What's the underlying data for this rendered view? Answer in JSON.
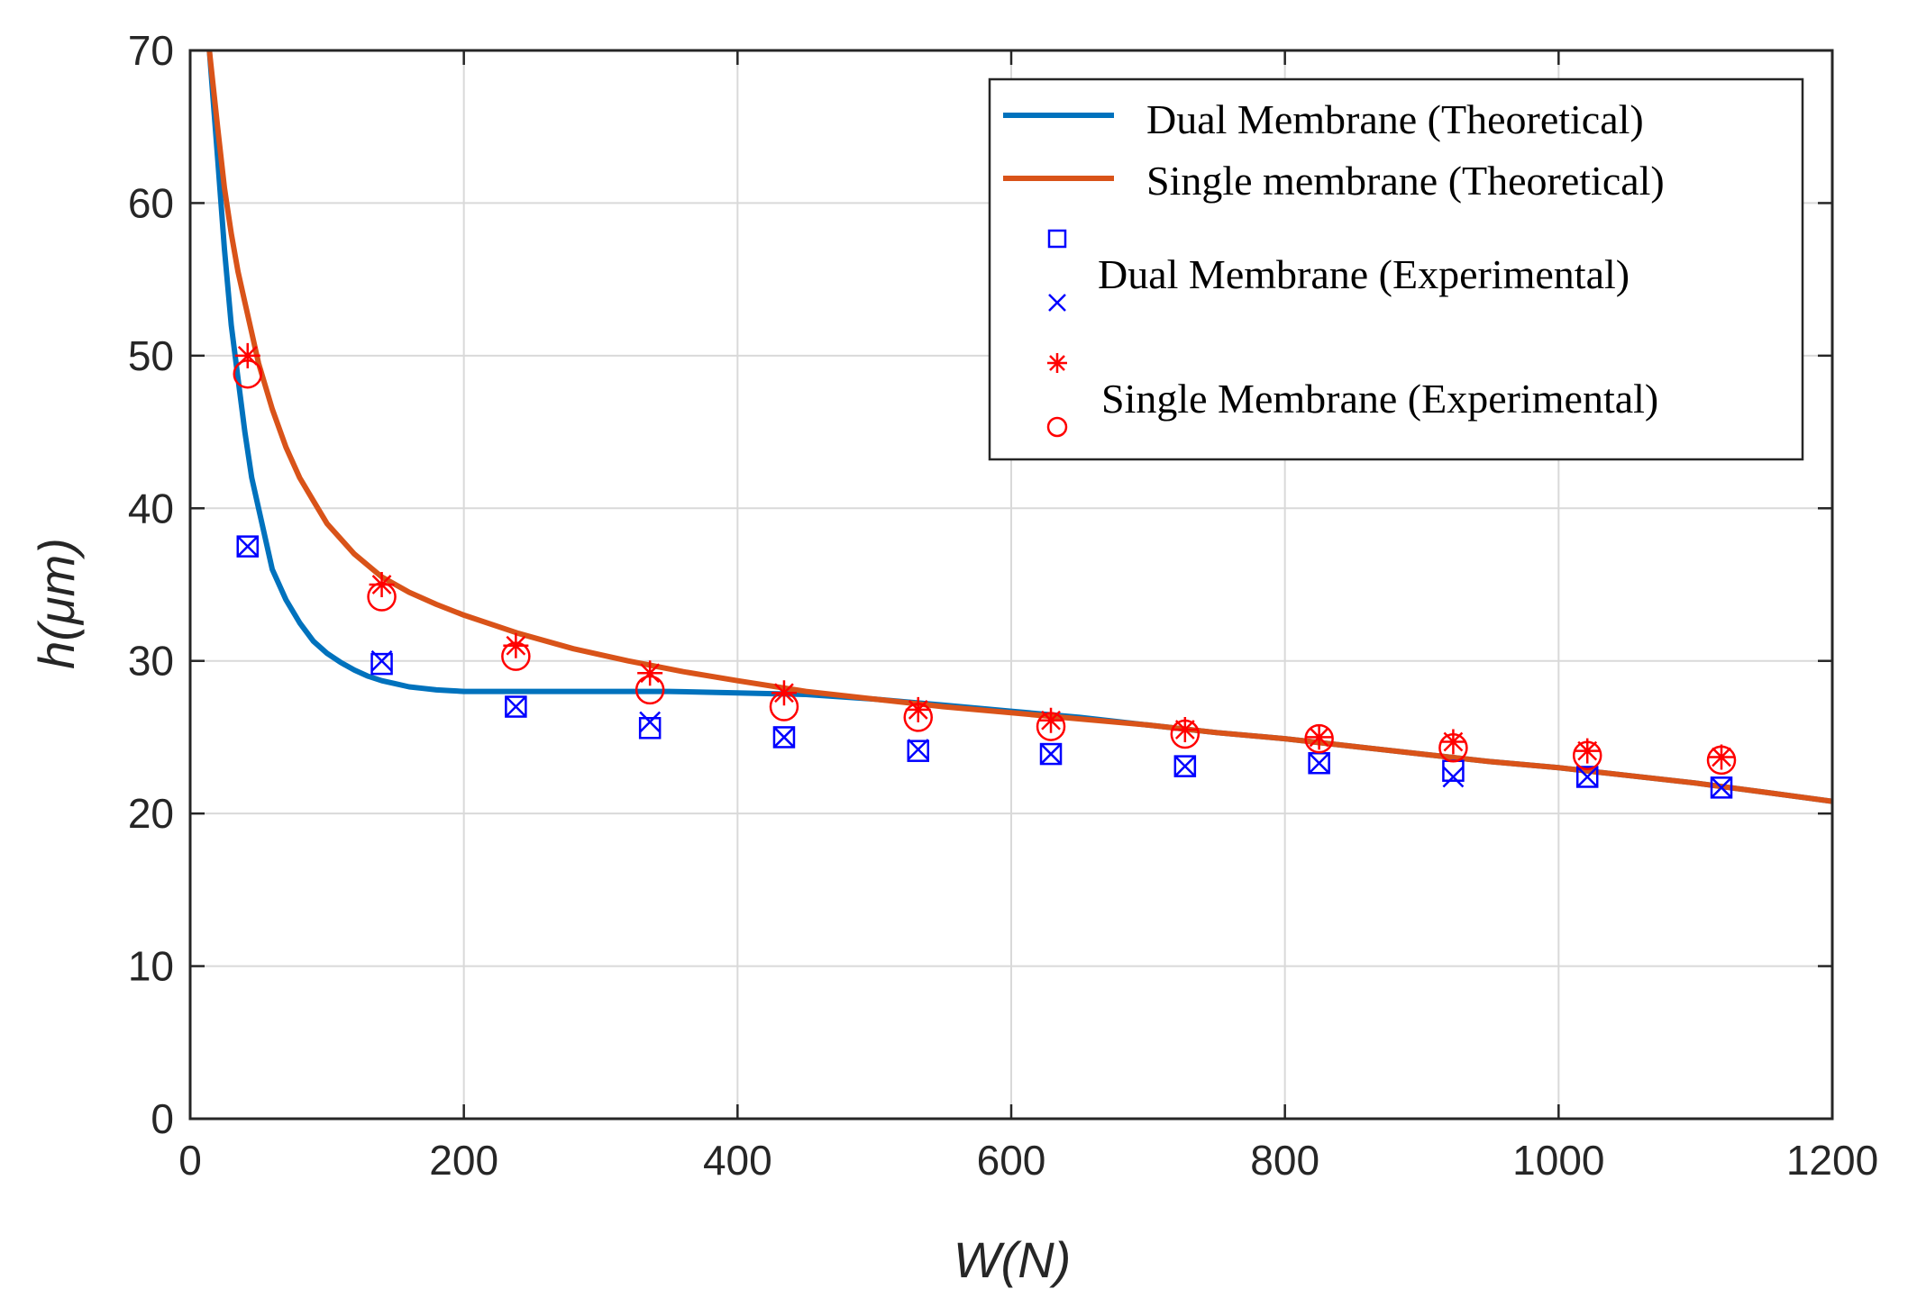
{
  "chart_data": {
    "type": "line",
    "title": "",
    "xlabel": "W(N)",
    "ylabel": "h(μm)",
    "xlim": [
      0,
      1200
    ],
    "ylim": [
      0,
      70
    ],
    "x_ticks": [
      0,
      200,
      400,
      600,
      800,
      1000,
      1200
    ],
    "y_ticks": [
      0,
      10,
      20,
      30,
      40,
      50,
      60,
      70
    ],
    "x_tick_labels": [
      "0",
      "200",
      "400",
      "600",
      "800",
      "1000",
      "1200"
    ],
    "y_tick_labels": [
      "0",
      "10",
      "20",
      "30",
      "40",
      "50",
      "60",
      "70"
    ],
    "grid": true,
    "legend_position": "top-right",
    "series": [
      {
        "name": "Dual Membrane (Theoretical)",
        "kind": "line",
        "color": "#0072bd",
        "x": [
          14,
          20,
          25,
          30,
          35,
          40,
          45,
          50,
          60,
          70,
          80,
          90,
          100,
          110,
          120,
          130,
          140,
          150,
          160,
          170,
          180,
          190,
          200,
          220,
          240,
          260,
          280,
          300,
          350,
          400,
          450,
          500,
          550,
          600,
          650,
          700,
          750,
          800,
          850,
          900,
          950,
          1000,
          1050,
          1100,
          1150,
          1200
        ],
        "y": [
          70,
          63,
          57,
          52,
          48.5,
          45,
          42,
          40,
          36,
          34,
          32.5,
          31.3,
          30.5,
          29.9,
          29.4,
          29.0,
          28.7,
          28.5,
          28.3,
          28.2,
          28.1,
          28.05,
          28.0,
          28.0,
          28.0,
          28.0,
          28.0,
          28.0,
          28.0,
          27.9,
          27.8,
          27.5,
          27.1,
          26.7,
          26.3,
          25.8,
          25.3,
          24.9,
          24.4,
          23.9,
          23.4,
          23.0,
          22.5,
          22.0,
          21.4,
          20.8
        ]
      },
      {
        "name": "Single membrane (Theoretical)",
        "kind": "line",
        "color": "#d95319",
        "x": [
          14,
          20,
          25,
          30,
          35,
          40,
          45,
          50,
          60,
          70,
          80,
          90,
          100,
          120,
          140,
          160,
          180,
          200,
          240,
          280,
          320,
          360,
          400,
          450,
          500,
          550,
          600,
          650,
          700,
          750,
          800,
          850,
          900,
          950,
          1000,
          1050,
          1100,
          1150,
          1200
        ],
        "y": [
          70,
          65,
          61,
          58,
          55.5,
          53.5,
          51.5,
          49.5,
          46.5,
          44,
          42,
          40.5,
          39,
          37,
          35.5,
          34.5,
          33.7,
          33.0,
          31.8,
          30.8,
          30.0,
          29.3,
          28.7,
          28.0,
          27.5,
          27.0,
          26.6,
          26.2,
          25.8,
          25.3,
          24.9,
          24.4,
          23.9,
          23.4,
          23.0,
          22.5,
          22.0,
          21.4,
          20.8
        ]
      },
      {
        "name": "Dual Membrane (Experimental)",
        "kind": "markers",
        "markers": [
          "square",
          "x"
        ],
        "marker_names": [
          "dual-square",
          "dual-x"
        ],
        "color": "#0000ff",
        "x": [
          42,
          140,
          238,
          336,
          434,
          532,
          629,
          727,
          825,
          923,
          1021,
          1119
        ],
        "y": [
          37.5,
          29.8,
          27.0,
          25.6,
          25.0,
          24.1,
          23.9,
          23.1,
          23.3,
          22.8,
          22.4,
          21.7
        ],
        "y_x": [
          37.5,
          30.0,
          27.0,
          26.0,
          25.0,
          24.2,
          23.9,
          23.1,
          23.3,
          22.4,
          22.4,
          21.7
        ]
      },
      {
        "name": "Single Membrane (Experimental)",
        "kind": "markers",
        "markers": [
          "asterisk",
          "circle"
        ],
        "marker_names": [
          "single-asterisk",
          "single-circle"
        ],
        "color": "#ff0000",
        "x": [
          42,
          140,
          238,
          336,
          434,
          532,
          629,
          727,
          825,
          923,
          1021,
          1119
        ],
        "y": [
          50.0,
          35.0,
          31.0,
          29.2,
          27.9,
          26.8,
          26.1,
          25.5,
          25.0,
          24.7,
          24.1,
          23.7
        ],
        "y_circle": [
          48.8,
          34.2,
          30.3,
          28.1,
          27.0,
          26.3,
          25.7,
          25.2,
          24.9,
          24.3,
          23.8,
          23.5
        ]
      }
    ],
    "legend_entries": [
      "Dual Membrane (Theoretical)",
      "Single membrane (Theoretical)",
      "Dual Membrane (Experimental)",
      "Single Membrane (Experimental)"
    ]
  }
}
